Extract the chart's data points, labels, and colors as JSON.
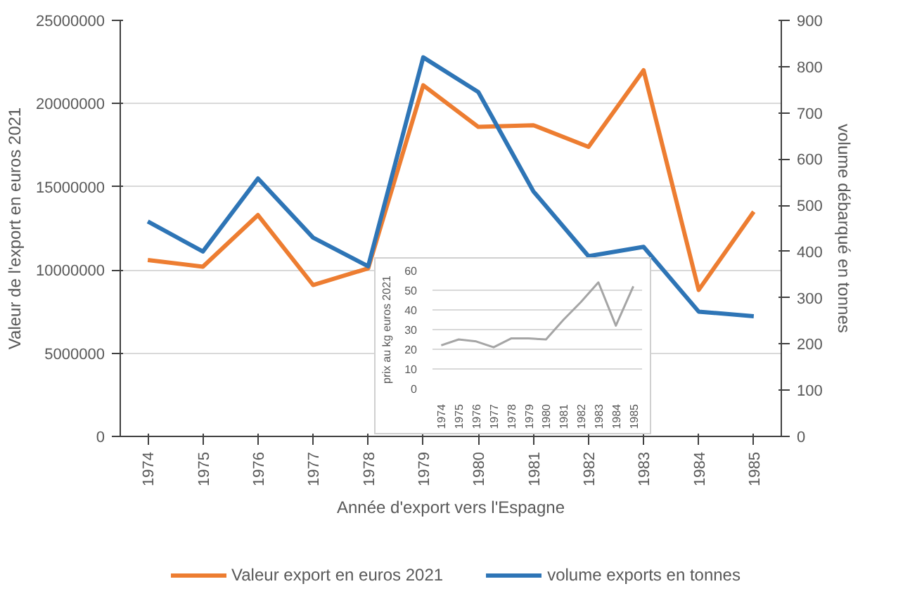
{
  "chart_data": [
    {
      "type": "line",
      "xlabel": "Année d'export vers l'Espagne",
      "ylabel": "Valeur de l'export en euros 2021",
      "y2label": "volume débarqué en tonnes",
      "categories": [
        "1974",
        "1975",
        "1976",
        "1977",
        "1978",
        "1979",
        "1980",
        "1981",
        "1982",
        "1983",
        "1984",
        "1985"
      ],
      "series": [
        {
          "name": "Valeur export en euros 2021",
          "color": "#ed7d31",
          "values": [
            10600000,
            10200000,
            13300000,
            9100000,
            10100000,
            21100000,
            18600000,
            18700000,
            17400000,
            22000000,
            8800000,
            13500000
          ]
        },
        {
          "name": "volume exports en tonnes",
          "color": "#2e75b6",
          "axis": "y2",
          "values": [
            465,
            400,
            558,
            430,
            368,
            820,
            745,
            530,
            390,
            410,
            270,
            260
          ]
        }
      ],
      "ylim": [
        0,
        25000000
      ],
      "yticks": [
        0,
        5000000,
        10000000,
        15000000,
        20000000,
        25000000
      ],
      "y2lim": [
        0,
        900
      ],
      "y2ticks": [
        0,
        100,
        200,
        300,
        400,
        500,
        600,
        700,
        800,
        900
      ],
      "grid": "y",
      "legend": "bottom",
      "marker": "none",
      "line_style": "solid"
    },
    {
      "type": "line",
      "ylabel": "prix au kg euros 2021",
      "categories": [
        "1974",
        "1975",
        "1976",
        "1977",
        "1978",
        "1979",
        "1980",
        "1981",
        "1982",
        "1983",
        "1984",
        "1985"
      ],
      "series": [
        {
          "color": "#a5a5a5",
          "values": [
            22,
            25,
            24,
            21,
            25.5,
            25.5,
            25,
            35,
            44,
            54,
            32,
            52
          ]
        }
      ],
      "ylim": [
        0,
        60
      ],
      "yticks": [
        0,
        10,
        20,
        30,
        40,
        50,
        60
      ],
      "grid": "y",
      "marker": "none",
      "line_style": "solid"
    }
  ]
}
